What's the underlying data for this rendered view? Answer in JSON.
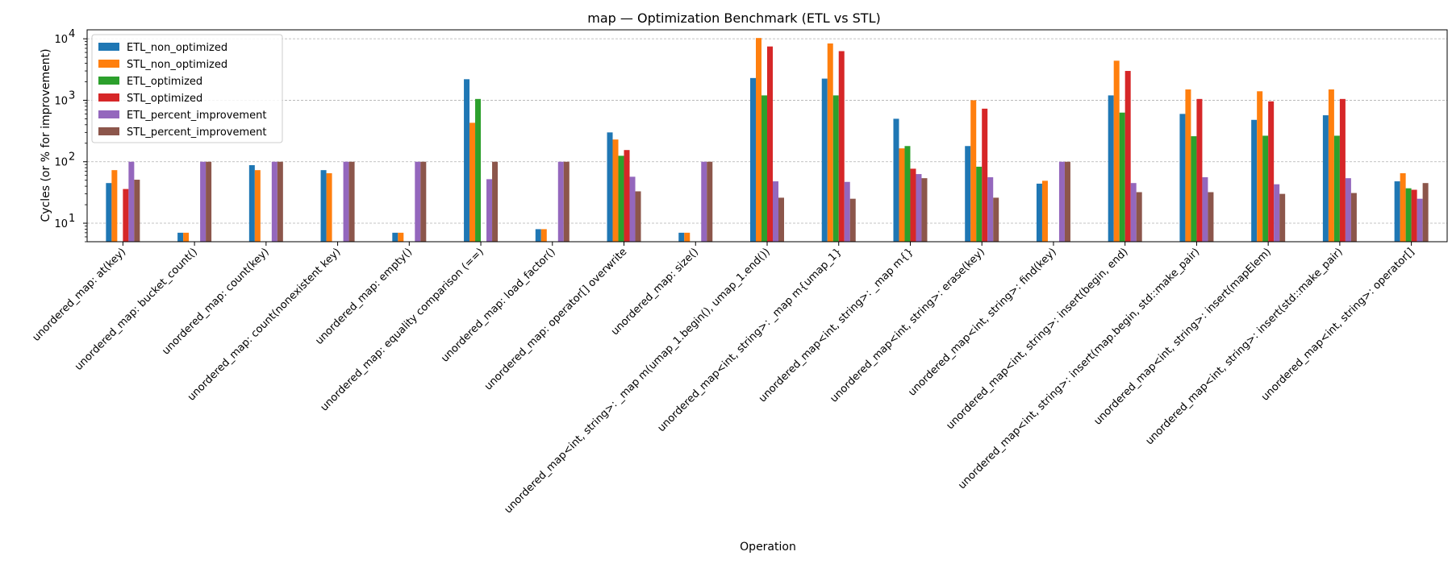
{
  "chart_data": {
    "type": "bar",
    "title": "map — Optimization Benchmark (ETL vs STL)",
    "xlabel": "Operation",
    "ylabel": "Cycles (or % for improvement)",
    "yscale": "log",
    "ylim": [
      5,
      14000
    ],
    "yticks": [
      {
        "value": 10,
        "label": "10"
      },
      {
        "value": 100,
        "label": "10"
      },
      {
        "value": 1000,
        "label": "10"
      },
      {
        "value": 10000,
        "label": "10"
      }
    ],
    "ytick_exponents": [
      "1",
      "2",
      "3",
      "4"
    ],
    "grid": "y",
    "legend_position": "upper-left",
    "categories": [
      "unordered_map: at(key)",
      "unordered_map: bucket_count()",
      "unordered_map: count(key)",
      "unordered_map: count(nonexistent key)",
      "unordered_map: empty()",
      "unordered_map: equality comparison (==)",
      "unordered_map: load_factor()",
      "unordered_map: operator[] overwrite",
      "unordered_map: size()",
      "unordered_map<int, string>: _map m(umap_1.begin(), umap_1.end())",
      "unordered_map<int, string>: _map m{umap_1}",
      "unordered_map<int, string>: _map m{}",
      "unordered_map<int, string>: erase(key)",
      "unordered_map<int, string>: find(key)",
      "unordered_map<int, string>: insert(begin, end)",
      "unordered_map<int, string>: insert(map.begin, std::make_pair)",
      "unordered_map<int, string>: insert(mapElem)",
      "unordered_map<int, string>: insert(std::make_pair)",
      "unordered_map<int, string>: operator[]"
    ],
    "series": [
      {
        "name": "ETL_non_optimized",
        "color": "#1f77b4",
        "values": [
          45,
          7,
          88,
          73,
          7,
          2200,
          8,
          300,
          7,
          2300,
          2250,
          500,
          180,
          44,
          1200,
          600,
          480,
          570,
          48
        ]
      },
      {
        "name": "STL_non_optimized",
        "color": "#ff7f0e",
        "values": [
          73,
          7,
          73,
          65,
          7,
          430,
          8,
          230,
          7,
          10300,
          8400,
          165,
          1000,
          49,
          4400,
          1500,
          1400,
          1500,
          65
        ]
      },
      {
        "name": "ETL_optimized",
        "color": "#2ca02c",
        "values": [
          null,
          null,
          null,
          null,
          null,
          1050,
          null,
          125,
          null,
          1200,
          1200,
          180,
          83,
          null,
          630,
          260,
          265,
          265,
          37
        ]
      },
      {
        "name": "STL_optimized",
        "color": "#d62728",
        "values": [
          36,
          null,
          null,
          null,
          null,
          null,
          null,
          155,
          null,
          7500,
          6300,
          77,
          730,
          null,
          3000,
          1050,
          960,
          1050,
          35
        ]
      },
      {
        "name": "ETL_percent_improvement",
        "color": "#9467bd",
        "values": [
          100,
          100,
          100,
          100,
          100,
          52,
          100,
          57,
          100,
          48,
          47,
          63,
          56,
          100,
          45,
          56,
          43,
          54,
          25
        ]
      },
      {
        "name": "STL_percent_improvement",
        "color": "#8c564b",
        "values": [
          51,
          100,
          100,
          100,
          100,
          100,
          100,
          33,
          100,
          26,
          25,
          54,
          26,
          100,
          32,
          32,
          30,
          31,
          45
        ]
      }
    ]
  }
}
